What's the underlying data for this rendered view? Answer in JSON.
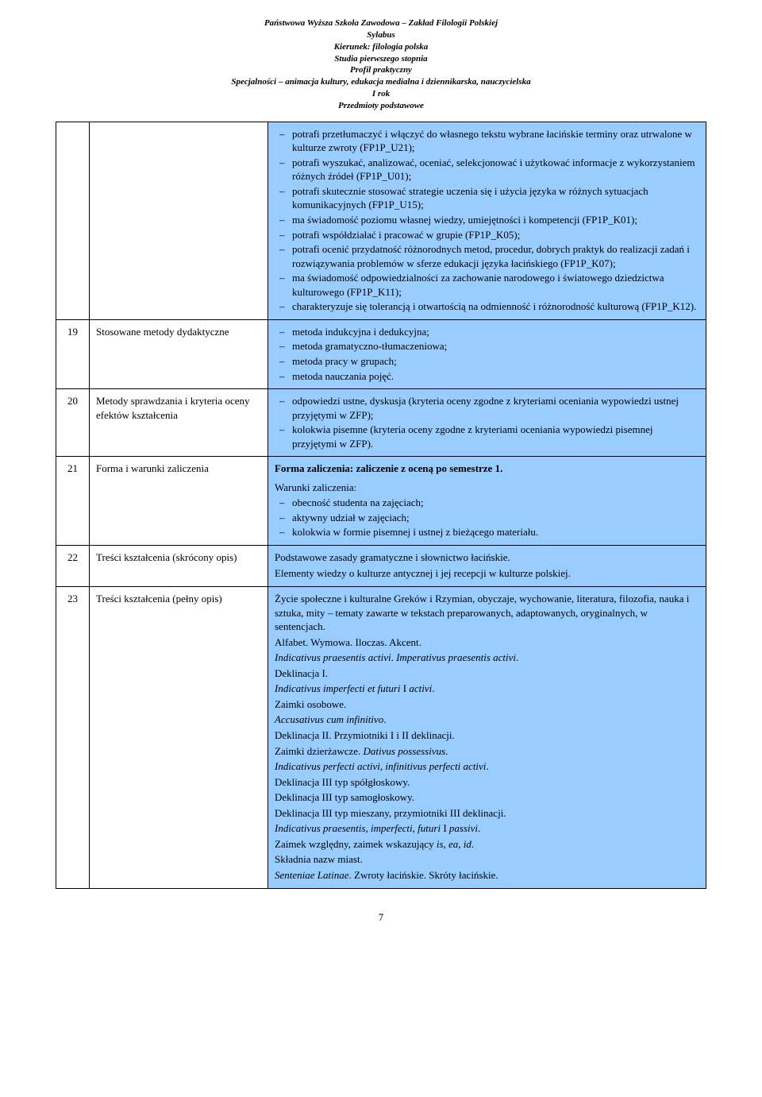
{
  "header": {
    "l1": "Państwowa Wyższa Szkoła Zawodowa – Zakład Filologii Polskiej",
    "l2": "Sylabus",
    "l3": "Kierunek: filologia polska",
    "l4": "Studia pierwszego stopnia",
    "l5": "Profil praktyczny",
    "l6": "Specjalności – animacja kultury, edukacja medialna i dziennikarska, nauczycielska",
    "l7": "I rok",
    "l8": "Przedmioty podstawowe"
  },
  "row0": {
    "items": [
      "potrafi przetłumaczyć i włączyć do własnego tekstu wybrane łacińskie terminy oraz utrwalone w kulturze zwroty (FP1P_U21);",
      "potrafi wyszukać, analizować, oceniać, selekcjonować i użytkować informacje z wykorzystaniem różnych źródeł (FP1P_U01);",
      "potrafi skutecznie stosować strategie uczenia się i użycia języka w różnych sytuacjach komunikacyjnych (FP1P_U15);",
      "ma świadomość poziomu własnej wiedzy, umiejętności i kompetencji (FP1P_K01);",
      "potrafi współdziałać i pracować w grupie (FP1P_K05);",
      "potrafi ocenić przydatność różnorodnych metod, procedur, dobrych praktyk do realizacji zadań i rozwiązywania problemów w sferze edukacji języka łacińskiego (FP1P_K07);",
      "ma świadomość odpowiedzialności za zachowanie narodowego i światowego dziedzictwa kulturowego (FP1P_K11);",
      "charakteryzuje się tolerancją i otwartością na odmienność i różnorodność kulturową (FP1P_K12)."
    ]
  },
  "row19": {
    "num": "19",
    "label": "Stosowane metody dydaktyczne",
    "items": [
      "metoda indukcyjna i dedukcyjna;",
      "metoda gramatyczno-tłumaczeniowa;",
      "metoda pracy w grupach;",
      "metoda nauczania pojęć."
    ]
  },
  "row20": {
    "num": "20",
    "label": "Metody sprawdzania i kryteria oceny efektów kształcenia",
    "items": [
      "odpowiedzi ustne, dyskusja (kryteria oceny zgodne z kryteriami oceniania wypowiedzi ustnej przyjętymi w ZFP);",
      "kolokwia pisemne (kryteria oceny zgodne z kryteriami oceniania wypowiedzi pisemnej przyjętymi w ZFP)."
    ]
  },
  "row21": {
    "num": "21",
    "label": "Forma i warunki zaliczenia",
    "title": "Forma zaliczenia: zaliczenie z oceną po semestrze 1.",
    "subhead": "Warunki zaliczenia:",
    "items": [
      "obecność studenta na zajęciach;",
      "aktywny udział w zajęciach;",
      "kolokwia w formie pisemnej i ustnej z bieżącego materiału."
    ]
  },
  "row22": {
    "num": "22",
    "label": "Treści kształcenia (skrócony opis)",
    "p1": "Podstawowe zasady gramatyczne i słownictwo łacińskie.",
    "p2": "Elementy wiedzy o kulturze antycznej i jej recepcji w kulturze polskiej."
  },
  "row23": {
    "num": "23",
    "label": "Treści kształcenia (pełny opis)",
    "p1": "Życie społeczne i kulturalne Greków i Rzymian, obyczaje, wychowanie, literatura, filozofia, nauka i sztuka, mity – tematy zawarte w tekstach preparowanych, adaptowanych, oryginalnych, w sentencjach.",
    "p2": "Alfabet. Wymowa. Iloczas. Akcent.",
    "p3a": "Indicativus praesentis activi",
    "p3b": ". ",
    "p3c": "Imperativus praesentis activi",
    "p3d": ".",
    "p4": "Deklinacja I.",
    "p5a": "Indicativus imperfecti et futuri",
    "p5b": " I ",
    "p5c": "activi",
    "p5d": ".",
    "p6": "Zaimki osobowe.",
    "p7a": "Accusativus cum infinitivo",
    "p7b": ".",
    "p8": "Deklinacja II. Przymiotniki I i II deklinacji.",
    "p9a": "Zaimki dzierżawcze. ",
    "p9b": "Dativus possessivus",
    "p9c": ".",
    "p10a": "Indicativus perfecti activi",
    "p10b": ", ",
    "p10c": "infinitivus perfecti activi",
    "p10d": ".",
    "p11": "Deklinacja III typ spółgłoskowy.",
    "p12": "Deklinacja III typ samogłoskowy.",
    "p13": "Deklinacja III typ mieszany, przymiotniki III deklinacji.",
    "p14a": "Indicativus praesentis, imperfecti, futuri",
    "p14b": " I ",
    "p14c": "passivi",
    "p14d": ".",
    "p15a": "Zaimek względny, zaimek wskazujący ",
    "p15b": "is",
    "p15c": ", ",
    "p15d": "ea",
    "p15e": ", ",
    "p15f": "id",
    "p15g": ".",
    "p16": "Składnia nazw miast.",
    "p17a": "Senteniae Latinae",
    "p17b": ". Zwroty łacińskie. Skróty łacińskie."
  },
  "pageNumber": "7",
  "colors": {
    "cellBg": "#99ccff",
    "border": "#000000",
    "pageBg": "#ffffff",
    "text": "#000000"
  },
  "typography": {
    "bodyFontFamily": "Times New Roman",
    "bodyFontSize": 13,
    "headerFontSize": 11
  }
}
